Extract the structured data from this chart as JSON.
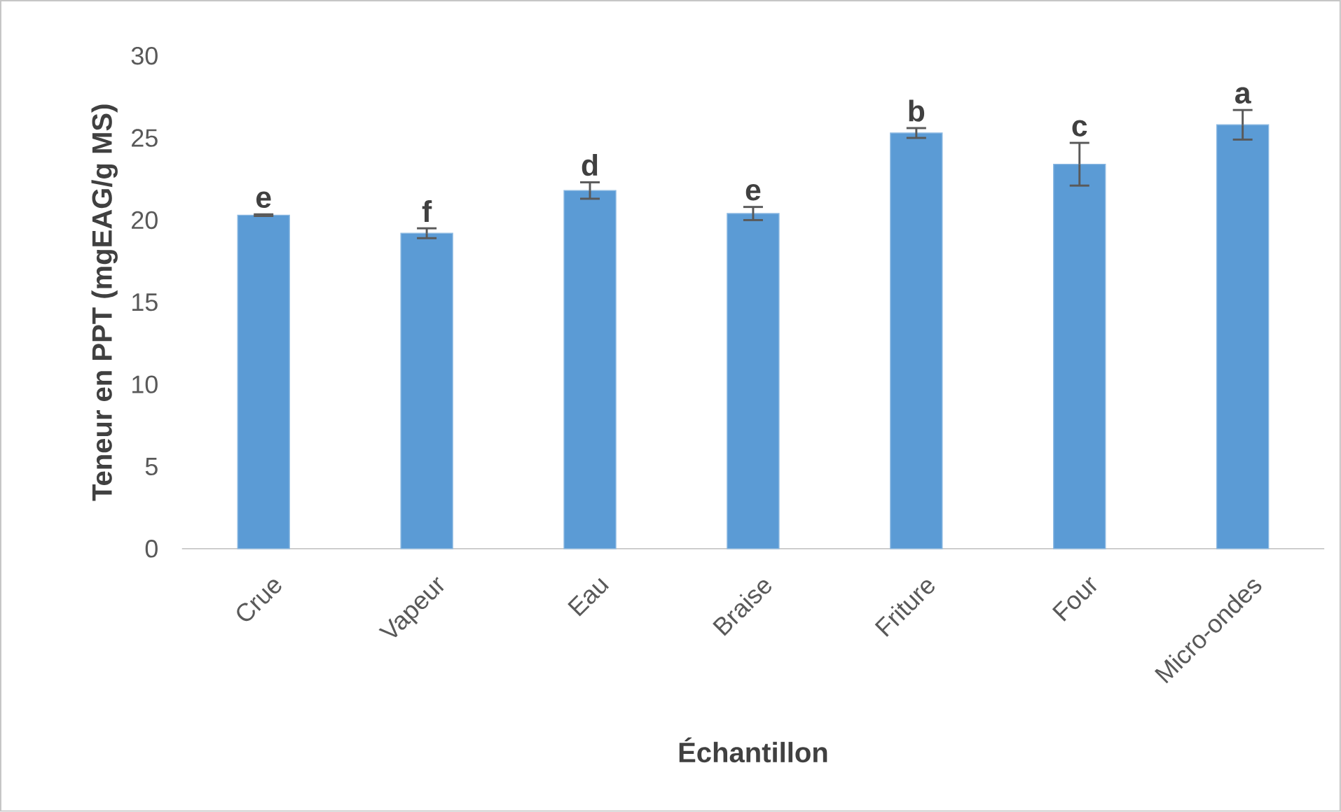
{
  "chart_data": {
    "type": "bar",
    "xlabel": "Échantillon",
    "ylabel": "Teneur en PPT (mgEAG/g MS)",
    "categories": [
      "Crue",
      "Vapeur",
      "Eau",
      "Braise",
      "Friture",
      "Four",
      "Micro-ondes"
    ],
    "values": [
      20.3,
      19.2,
      21.8,
      20.4,
      25.3,
      23.4,
      25.8
    ],
    "errors": [
      0.05,
      0.3,
      0.5,
      0.4,
      0.3,
      1.3,
      0.9
    ],
    "color": "#5b9bd5",
    "ylim": [
      0,
      30
    ],
    "yticks": [
      0,
      5,
      10,
      15,
      20,
      25,
      30
    ],
    "grid": false,
    "annotations": [
      {
        "text": "e",
        "x": "Crue",
        "y": 20.35
      },
      {
        "text": "f",
        "x": "Vapeur",
        "y": 19.5
      },
      {
        "text": "d",
        "x": "Eau",
        "y": 22.3
      },
      {
        "text": "e",
        "x": "Braise",
        "y": 20.8
      },
      {
        "text": "b",
        "x": "Friture",
        "y": 25.6
      },
      {
        "text": "c",
        "x": "Four",
        "y": 24.7
      },
      {
        "text": "a",
        "x": "Micro-ondes",
        "y": 26.7
      }
    ]
  }
}
